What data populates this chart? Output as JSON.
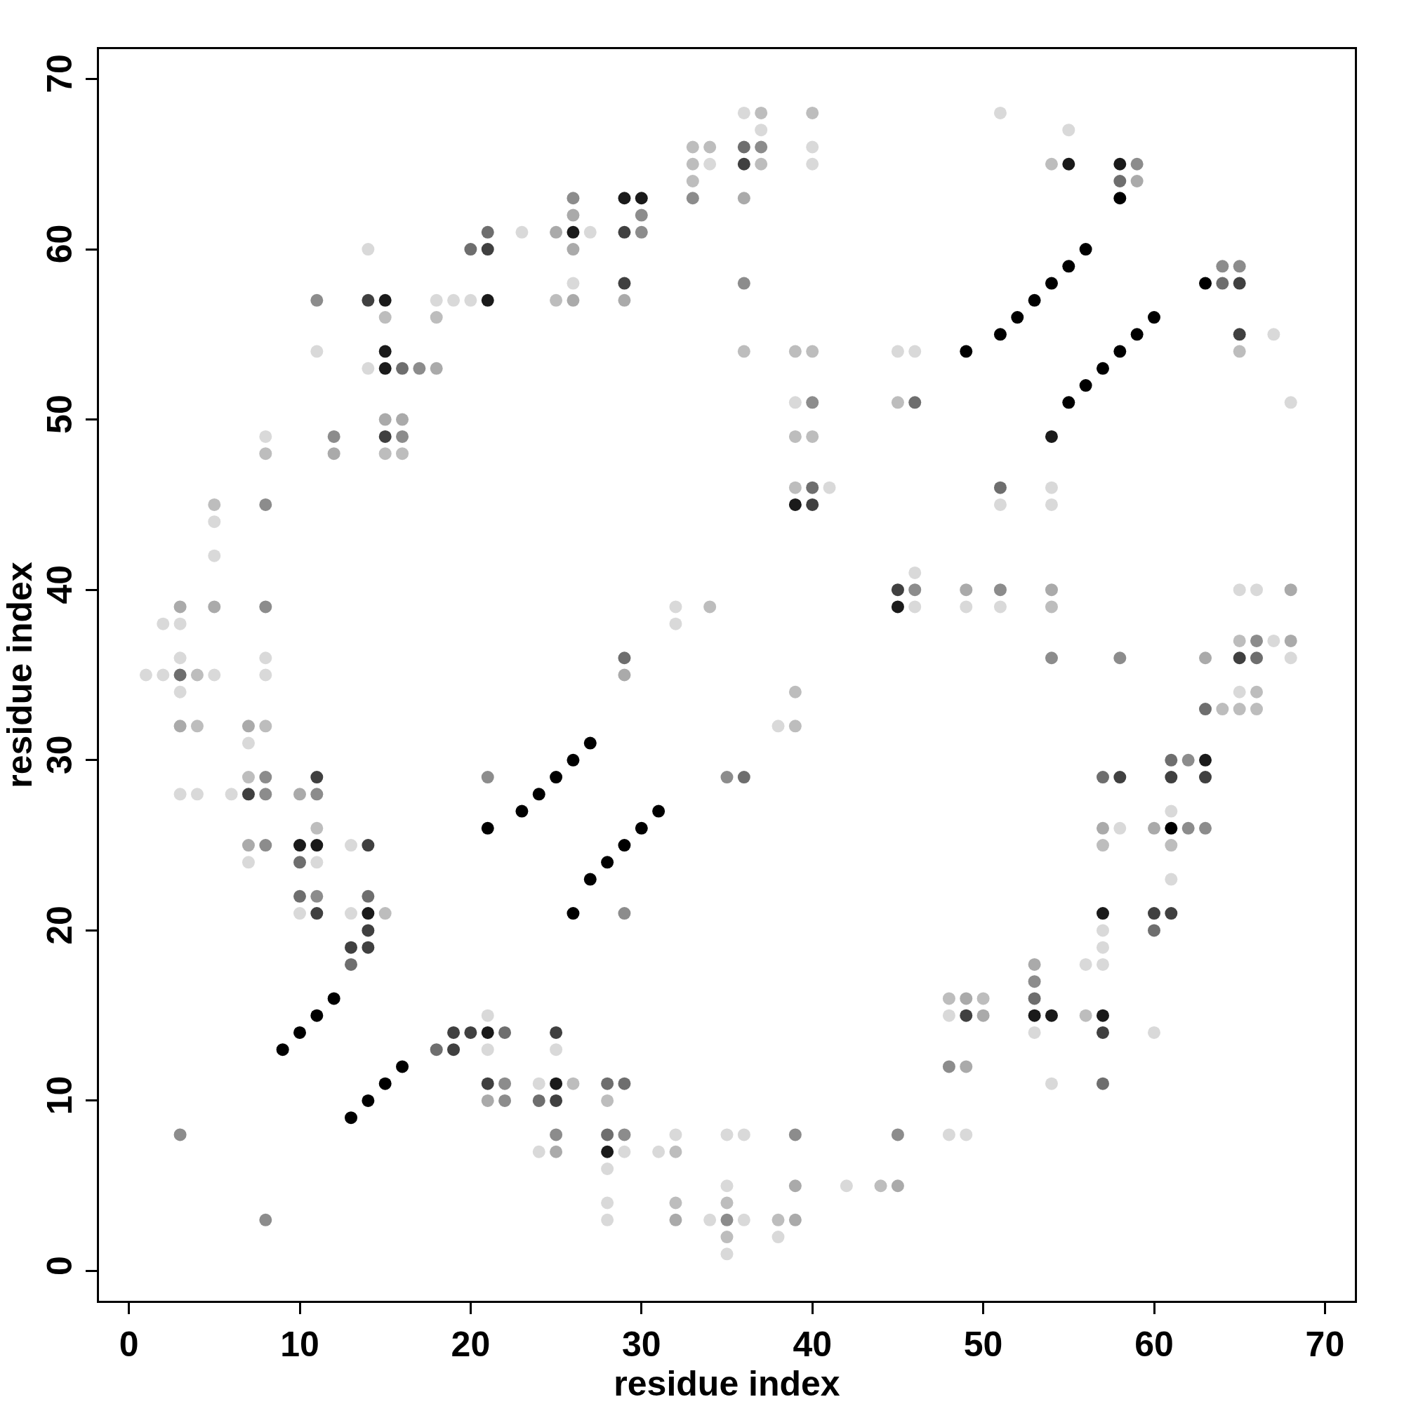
{
  "chart_data": {
    "type": "scatter",
    "xlabel": "residue index",
    "ylabel": "residue index",
    "xlim": [
      -1.75,
      71.75
    ],
    "ylim": [
      -1.75,
      71.75
    ],
    "xticks": [
      0,
      10,
      20,
      30,
      40,
      50,
      60,
      70
    ],
    "yticks": [
      0,
      10,
      20,
      30,
      40,
      50,
      60,
      70
    ],
    "grid": false,
    "marker": "circle",
    "series": [
      {
        "color": "#000000",
        "x": [
          9,
          10,
          11,
          12,
          13,
          14,
          15,
          16,
          21,
          23,
          24,
          25,
          26,
          27,
          26,
          27,
          28,
          29,
          30,
          31,
          49,
          51,
          52,
          53,
          54,
          55,
          56,
          55,
          56,
          57,
          58,
          59,
          60,
          63,
          61,
          58
        ],
        "values": [
          13,
          14,
          15,
          16,
          9,
          10,
          11,
          12,
          26,
          27,
          28,
          29,
          30,
          31,
          21,
          23,
          24,
          25,
          26,
          27,
          54,
          55,
          56,
          57,
          58,
          59,
          60,
          51,
          52,
          53,
          54,
          55,
          56,
          58,
          26,
          63
        ]
      },
      {
        "color": "#1a1a1a",
        "x": [
          10,
          11,
          14,
          15,
          15,
          15,
          21,
          21,
          25,
          26,
          28,
          29,
          30,
          39,
          45,
          53,
          54,
          54,
          55,
          57,
          57,
          58,
          63
        ],
        "values": [
          25,
          25,
          21,
          57,
          54,
          53,
          57,
          14,
          11,
          61,
          7,
          63,
          63,
          45,
          39,
          15,
          49,
          15,
          65,
          21,
          15,
          65,
          30
        ]
      },
      {
        "color": "#404040",
        "x": [
          7,
          11,
          11,
          13,
          14,
          14,
          14,
          14,
          15,
          19,
          19,
          20,
          21,
          21,
          25,
          25,
          29,
          29,
          36,
          40,
          45,
          49,
          57,
          58,
          60,
          61,
          61,
          63,
          65,
          65,
          65
        ],
        "values": [
          28,
          29,
          21,
          19,
          57,
          25,
          20,
          19,
          49,
          14,
          13,
          14,
          60,
          11,
          14,
          10,
          61,
          58,
          65,
          45,
          40,
          15,
          14,
          29,
          21,
          29,
          21,
          29,
          58,
          55,
          36
        ]
      },
      {
        "color": "#6e6e6e",
        "x": [
          3,
          10,
          10,
          13,
          14,
          16,
          18,
          20,
          21,
          22,
          24,
          28,
          28,
          29,
          29,
          36,
          36,
          40,
          46,
          51,
          53,
          57,
          57,
          58,
          60,
          61,
          63,
          64,
          66
        ],
        "values": [
          35,
          24,
          22,
          18,
          22,
          53,
          13,
          60,
          61,
          14,
          10,
          11,
          8,
          36,
          11,
          66,
          29,
          46,
          51,
          46,
          16,
          29,
          11,
          64,
          20,
          30,
          33,
          58,
          36
        ]
      },
      {
        "color": "#8c8c8c",
        "x": [
          3,
          8,
          8,
          8,
          8,
          8,
          8,
          11,
          11,
          11,
          12,
          16,
          17,
          21,
          22,
          22,
          25,
          26,
          29,
          29,
          30,
          30,
          33,
          35,
          35,
          36,
          37,
          39,
          40,
          45,
          46,
          48,
          51,
          53,
          54,
          58,
          59,
          62,
          62,
          63,
          64,
          65,
          66
        ],
        "values": [
          8,
          45,
          39,
          29,
          28,
          25,
          3,
          57,
          28,
          22,
          49,
          49,
          53,
          29,
          11,
          10,
          8,
          63,
          21,
          8,
          62,
          61,
          63,
          29,
          3,
          58,
          66,
          8,
          51,
          8,
          40,
          12,
          40,
          17,
          36,
          36,
          65,
          30,
          26,
          26,
          59,
          59,
          37
        ]
      },
      {
        "color": "#aaaaaa",
        "x": [
          3,
          3,
          5,
          7,
          7,
          10,
          12,
          15,
          16,
          18,
          21,
          25,
          25,
          26,
          26,
          26,
          29,
          29,
          32,
          36,
          39,
          39,
          45,
          49,
          49,
          49,
          50,
          53,
          54,
          57,
          59,
          60,
          63,
          68,
          68
        ],
        "values": [
          39,
          32,
          39,
          32,
          25,
          28,
          48,
          50,
          50,
          53,
          10,
          61,
          7,
          62,
          60,
          57,
          57,
          35,
          3,
          63,
          5,
          3,
          5,
          40,
          16,
          12,
          15,
          18,
          40,
          26,
          64,
          26,
          36,
          40,
          37
        ]
      },
      {
        "color": "#bdbdbd",
        "x": [
          4,
          4,
          5,
          7,
          8,
          8,
          11,
          15,
          15,
          15,
          16,
          18,
          25,
          26,
          28,
          32,
          32,
          33,
          33,
          33,
          34,
          34,
          35,
          35,
          36,
          37,
          37,
          38,
          39,
          39,
          39,
          39,
          39,
          40,
          40,
          40,
          44,
          45,
          48,
          50,
          54,
          54,
          56,
          57,
          61,
          64,
          65,
          65,
          65,
          66,
          66
        ],
        "values": [
          35,
          32,
          45,
          29,
          48,
          32,
          26,
          56,
          48,
          21,
          48,
          56,
          57,
          11,
          10,
          7,
          4,
          66,
          65,
          64,
          66,
          39,
          4,
          2,
          54,
          68,
          65,
          3,
          54,
          49,
          46,
          34,
          32,
          68,
          54,
          49,
          5,
          51,
          16,
          16,
          65,
          39,
          15,
          25,
          25,
          33,
          54,
          37,
          33,
          34,
          33
        ]
      },
      {
        "color": "#d9d9d9",
        "x": [
          1,
          2,
          2,
          3,
          3,
          3,
          3,
          4,
          5,
          5,
          5,
          6,
          7,
          7,
          8,
          8,
          8,
          10,
          11,
          11,
          13,
          13,
          14,
          14,
          18,
          19,
          20,
          21,
          21,
          23,
          24,
          24,
          25,
          26,
          27,
          28,
          28,
          28,
          29,
          31,
          32,
          32,
          32,
          34,
          34,
          35,
          35,
          35,
          36,
          36,
          36,
          37,
          38,
          38,
          39,
          40,
          40,
          41,
          42,
          45,
          46,
          46,
          46,
          48,
          48,
          49,
          49,
          51,
          51,
          51,
          53,
          54,
          54,
          54,
          55,
          56,
          57,
          57,
          57,
          58,
          60,
          61,
          61,
          65,
          65,
          66,
          67,
          67,
          68,
          68
        ],
        "values": [
          35,
          38,
          35,
          38,
          36,
          34,
          28,
          28,
          44,
          42,
          35,
          28,
          31,
          24,
          49,
          36,
          35,
          21,
          54,
          24,
          25,
          21,
          60,
          53,
          57,
          57,
          57,
          15,
          13,
          61,
          11,
          7,
          13,
          58,
          61,
          6,
          4,
          3,
          7,
          7,
          39,
          38,
          8,
          65,
          3,
          8,
          5,
          1,
          68,
          8,
          3,
          67,
          32,
          2,
          51,
          66,
          65,
          46,
          5,
          54,
          54,
          41,
          39,
          15,
          8,
          39,
          8,
          68,
          45,
          39,
          14,
          46,
          45,
          11,
          67,
          18,
          20,
          19,
          18,
          26,
          14,
          27,
          23,
          40,
          34,
          40,
          55,
          37,
          51,
          36
        ]
      }
    ]
  }
}
